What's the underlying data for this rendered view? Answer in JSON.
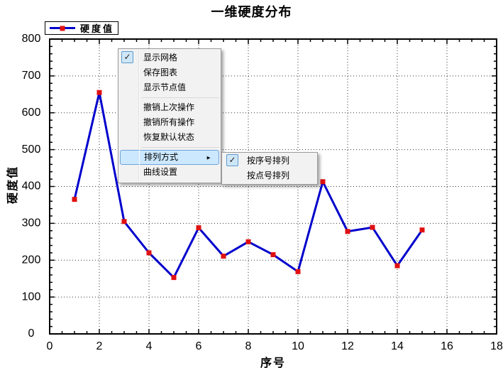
{
  "window": {
    "title": "一维硬度分布"
  },
  "chart_data": {
    "type": "line",
    "title": "一维硬度分布",
    "xlabel": "序号",
    "ylabel": "硬度值",
    "legend": [
      "硬度值"
    ],
    "legend_position": "top-left",
    "grid": true,
    "xlim": [
      0,
      18
    ],
    "ylim": [
      0,
      800
    ],
    "x_major_step": 2,
    "x_minor_step": 0.5,
    "y_major_step": 100,
    "y_minor_step": 20,
    "x_tick_labels": [
      "0",
      "2",
      "4",
      "6",
      "8",
      "10",
      "12",
      "14",
      "16",
      "18"
    ],
    "y_tick_labels": [
      "0",
      "100",
      "200",
      "300",
      "400",
      "500",
      "600",
      "700",
      "800"
    ],
    "series": [
      {
        "name": "硬度值",
        "x": [
          1,
          2,
          3,
          4,
          5,
          6,
          7,
          8,
          9,
          10,
          11,
          12,
          13,
          14,
          15
        ],
        "values": [
          365,
          655,
          305,
          220,
          153,
          288,
          211,
          250,
          215,
          169,
          413,
          278,
          289,
          185,
          282
        ],
        "line_color": "#0000CC",
        "marker": "square",
        "marker_color": "#E01111"
      }
    ]
  },
  "context_menu": {
    "items": [
      {
        "label": "显示网格",
        "checked": true
      },
      {
        "label": "保存图表",
        "checked": false
      },
      {
        "label": "显示节点值",
        "checked": false
      },
      {
        "label": "撤销上次操作",
        "checked": false
      },
      {
        "label": "撤销所有操作",
        "checked": false
      },
      {
        "label": "恢复默认状态",
        "checked": false
      },
      {
        "label": "排列方式",
        "highlighted": true,
        "has_submenu": true
      },
      {
        "label": "曲线设置",
        "checked": false
      }
    ],
    "submenu": {
      "items": [
        {
          "label": "按序号排列",
          "checked": true
        },
        {
          "label": "按点号排列",
          "checked": false
        }
      ]
    },
    "check_glyph": "✓",
    "arrow_glyph": "►"
  },
  "colors": {
    "line": "#0000CC",
    "marker": "#E01111",
    "axis": "#000000",
    "grid": "#333333",
    "menu_bg": "#F2F2F2",
    "menu_border": "#9B9B9B",
    "highlight_bg": "#CCE8FF",
    "highlight_border": "#6DA3D8",
    "checkbox_bg": "#CFE6F7",
    "checkbox_border": "#5A9AD0"
  }
}
